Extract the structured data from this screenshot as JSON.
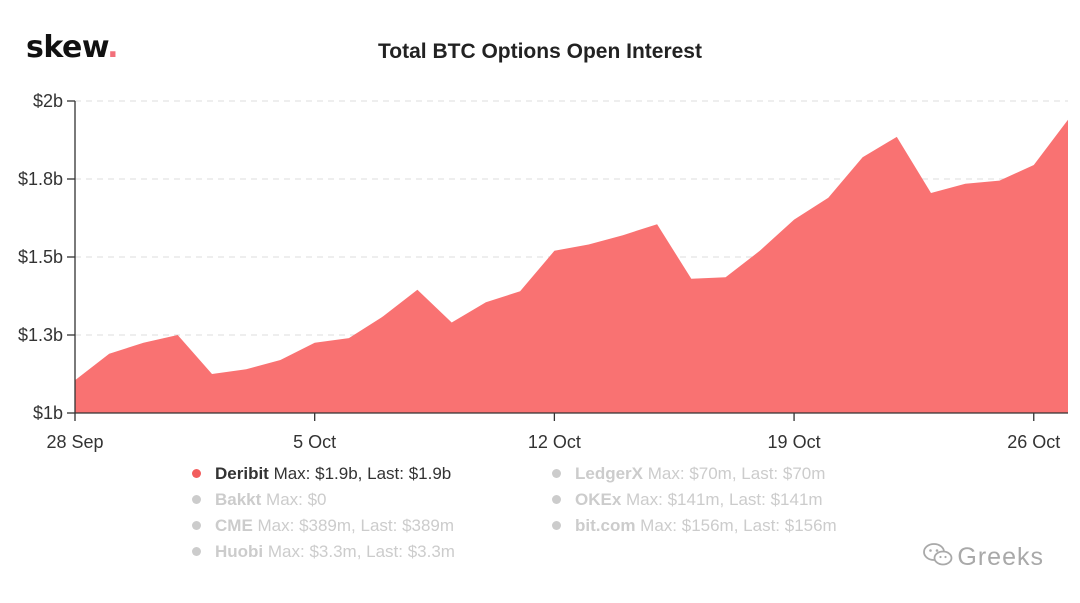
{
  "brand": {
    "name": "skew",
    "dot": "."
  },
  "watermark": {
    "text": "Greeks",
    "icon": "wechat-icon"
  },
  "chart_data": {
    "type": "area",
    "title": "Total BTC Options Open Interest",
    "xlabel": "",
    "ylabel": "",
    "ylim": [
      1.0,
      2.0
    ],
    "y_ticks": [
      {
        "value": 2.0,
        "label": "$2b"
      },
      {
        "value": 1.75,
        "label": "$1.8b"
      },
      {
        "value": 1.5,
        "label": "$1.5b"
      },
      {
        "value": 1.25,
        "label": "$1.3b"
      },
      {
        "value": 1.0,
        "label": "$1b"
      }
    ],
    "x_ticks": [
      {
        "date": "2020-09-28",
        "label": "28 Sep"
      },
      {
        "date": "2020-10-05",
        "label": "5 Oct"
      },
      {
        "date": "2020-10-12",
        "label": "12 Oct"
      },
      {
        "date": "2020-10-19",
        "label": "19 Oct"
      },
      {
        "date": "2020-10-26",
        "label": "26 Oct"
      }
    ],
    "grid": true,
    "color": "#f97272",
    "series": [
      {
        "name": "Deribit",
        "x": [
          "2020-09-28",
          "2020-09-29",
          "2020-09-30",
          "2020-10-01",
          "2020-10-02",
          "2020-10-03",
          "2020-10-04",
          "2020-10-05",
          "2020-10-06",
          "2020-10-07",
          "2020-10-08",
          "2020-10-09",
          "2020-10-10",
          "2020-10-11",
          "2020-10-12",
          "2020-10-13",
          "2020-10-14",
          "2020-10-15",
          "2020-10-16",
          "2020-10-17",
          "2020-10-18",
          "2020-10-19",
          "2020-10-20",
          "2020-10-21",
          "2020-10-22",
          "2020-10-23",
          "2020-10-24",
          "2020-10-25",
          "2020-10-26",
          "2020-10-27"
        ],
        "values": [
          1.105,
          1.19,
          1.225,
          1.25,
          1.125,
          1.14,
          1.17,
          1.225,
          1.24,
          1.31,
          1.395,
          1.29,
          1.355,
          1.39,
          1.52,
          1.54,
          1.57,
          1.605,
          1.43,
          1.435,
          1.52,
          1.62,
          1.69,
          1.82,
          1.885,
          1.705,
          1.735,
          1.745,
          1.795,
          1.94
        ]
      }
    ],
    "legend": {
      "placement": "bottom",
      "items": [
        {
          "name": "Deribit",
          "info": "Max: $1.9b, Last: $1.9b",
          "color": "#f25d5d",
          "active": true
        },
        {
          "name": "Bakkt",
          "info": "Max: $0",
          "color": "#cccccc",
          "active": false
        },
        {
          "name": "CME",
          "info": "Max: $389m, Last: $389m",
          "color": "#cccccc",
          "active": false
        },
        {
          "name": "Huobi",
          "info": "Max: $3.3m, Last: $3.3m",
          "color": "#cccccc",
          "active": false
        },
        {
          "name": "LedgerX",
          "info": "Max: $70m, Last: $70m",
          "color": "#cccccc",
          "active": false
        },
        {
          "name": "OKEx",
          "info": "Max: $141m, Last: $141m",
          "color": "#cccccc",
          "active": false
        },
        {
          "name": "bit.com",
          "info": "Max: $156m, Last: $156m",
          "color": "#cccccc",
          "active": false
        }
      ]
    }
  }
}
